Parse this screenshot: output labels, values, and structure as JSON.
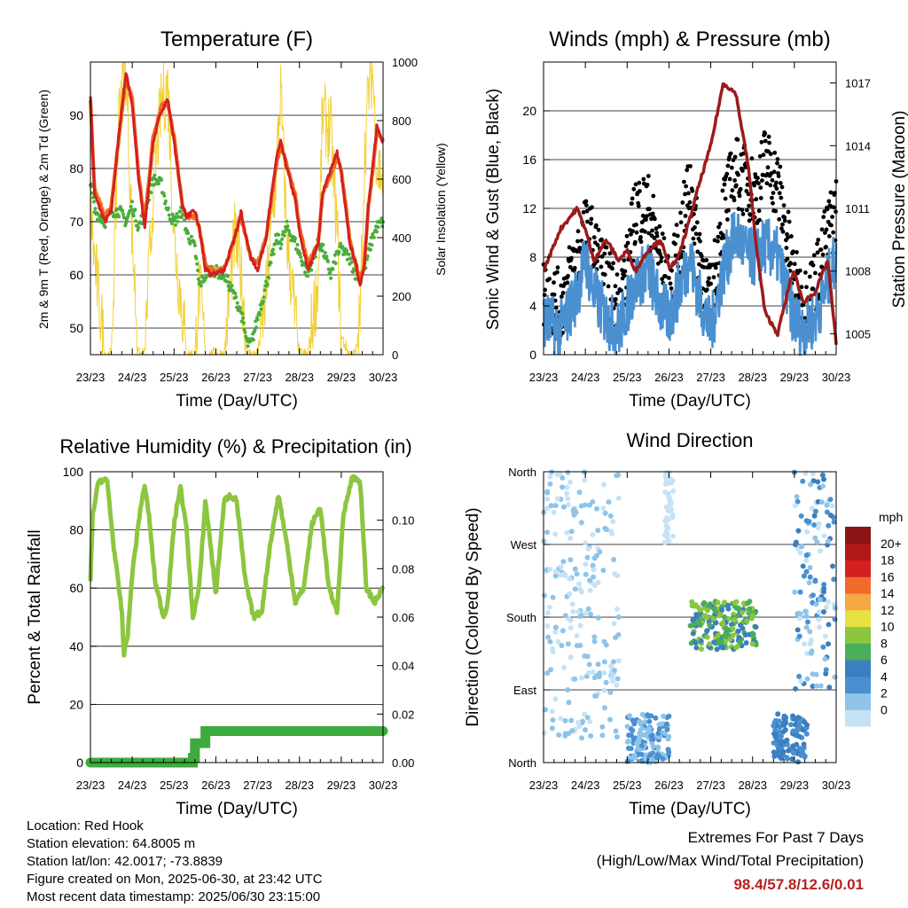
{
  "colors": {
    "temp2m": "#d42020",
    "temp9m": "#f07020",
    "dewpoint": "#4aad3c",
    "solar": "#f2d035",
    "wind": "#4a90d0",
    "gust": "#000000",
    "pressure": "#9b1b1b",
    "rh": "#8cc63f",
    "rain": "#3cab3c",
    "grid": "#000000",
    "extremes": "#b22222"
  },
  "x_axis": {
    "label": "Time (Day/UTC)",
    "ticks": [
      "23/23",
      "24/23",
      "25/23",
      "26/23",
      "27/23",
      "28/23",
      "29/23",
      "30/23"
    ]
  },
  "footer": {
    "location": "Location: Red Hook",
    "elevation": "Station elevation: 64.8005 m",
    "latlon": "Station lat/lon: 42.0017; -73.8839",
    "created": "Figure created on Mon, 2025-06-30, at 23:42 UTC",
    "latest": "Most recent data timestamp: 2025/06/30 23:15:00"
  },
  "extremes": {
    "title": "Extremes For Past 7 Days",
    "subtitle": "(High/Low/Max Wind/Total Precipitation)",
    "values": "98.4/57.8/12.6/0.01"
  },
  "chart_data": [
    {
      "type": "line",
      "title": "Temperature (F)",
      "xlabel": "Time (Day/UTC)",
      "ylabel": "2m & 9m T (Red, Orange) & 2m Td (Green)",
      "ylabel_right": "Solar Insolation (Yellow)",
      "x_ticks": [
        "23/23",
        "24/23",
        "25/23",
        "26/23",
        "27/23",
        "28/23",
        "29/23",
        "30/23"
      ],
      "ylim": [
        45,
        100
      ],
      "yticks": [
        50,
        60,
        70,
        80,
        90
      ],
      "ylim_right": [
        0,
        1000
      ],
      "yticks_right": [
        0,
        200,
        400,
        600,
        800,
        1000
      ],
      "grid": true,
      "x_days": [
        0,
        0.1,
        0.35,
        0.5,
        0.7,
        0.85,
        1.0,
        1.15,
        1.3,
        1.5,
        1.7,
        1.85,
        2.0,
        2.2,
        2.3,
        2.5,
        2.6,
        2.75,
        2.9,
        3.2,
        3.45,
        3.6,
        3.75,
        3.85,
        4.0,
        4.2,
        4.45,
        4.55,
        4.7,
        4.9,
        5.0,
        5.2,
        5.45,
        5.55,
        5.75,
        5.9,
        6.0,
        6.2,
        6.35,
        6.45,
        6.55,
        6.65,
        6.75,
        6.85,
        7.0
      ],
      "series": [
        {
          "name": "2m T",
          "role": "temp2m",
          "values": [
            94,
            75,
            70,
            72,
            88,
            98,
            92,
            78,
            69,
            85,
            91,
            93,
            85,
            73,
            71,
            72,
            69,
            61,
            60,
            61,
            67,
            72,
            66,
            63,
            61,
            67,
            82,
            85,
            80,
            74,
            68,
            61,
            66,
            75,
            80,
            83,
            79,
            66,
            62,
            58,
            62,
            73,
            80,
            88,
            85
          ]
        },
        {
          "name": "9m T",
          "role": "temp9m",
          "values": [
            93,
            76,
            71,
            73,
            87,
            97,
            93,
            79,
            70,
            86,
            92,
            92,
            86,
            73,
            71,
            71,
            69,
            62,
            61,
            61,
            67,
            71,
            66,
            63,
            62,
            67,
            81,
            84,
            81,
            75,
            69,
            62,
            66,
            75,
            79,
            82,
            80,
            67,
            62,
            59,
            62,
            73,
            79,
            87,
            85
          ]
        },
        {
          "name": "2m Td",
          "role": "dewpoint",
          "values": [
            78,
            72,
            70,
            72,
            72,
            70,
            73,
            69,
            72,
            78,
            77,
            72,
            70,
            72,
            68,
            65,
            58,
            60,
            61,
            60,
            56,
            53,
            47,
            47,
            52,
            58,
            67,
            66,
            69,
            66,
            64,
            60,
            66,
            65,
            60,
            64,
            65,
            63,
            60,
            60,
            61,
            64,
            67,
            69,
            70
          ]
        },
        {
          "name": "Solar Insolation",
          "role": "solar",
          "axis": "right",
          "values": [
            500,
            320,
            0,
            0,
            900,
            980,
            400,
            0,
            0,
            560,
            860,
            920,
            400,
            150,
            0,
            0,
            250,
            0,
            0,
            0,
            400,
            280,
            0,
            0,
            0,
            200,
            640,
            900,
            400,
            120,
            0,
            0,
            260,
            820,
            760,
            420,
            60,
            0,
            0,
            120,
            650,
            900,
            980,
            650,
            600
          ]
        }
      ]
    },
    {
      "type": "scatter",
      "title": "Winds (mph) & Pressure (mb)",
      "xlabel": "Time (Day/UTC)",
      "ylabel": "Sonic Wind & Gust (Blue, Black)",
      "ylabel_right": "Station Pressure (Maroon)",
      "x_ticks": [
        "23/23",
        "24/23",
        "25/23",
        "26/23",
        "27/23",
        "28/23",
        "29/23",
        "30/23"
      ],
      "ylim": [
        0,
        24
      ],
      "yticks": [
        0,
        4,
        8,
        12,
        16,
        20
      ],
      "ylim_right": [
        1004,
        1018
      ],
      "yticks_right": [
        1005,
        1008,
        1011,
        1014,
        1017
      ],
      "grid": true,
      "x_days": [
        0,
        0.4,
        0.8,
        1.0,
        1.2,
        1.5,
        1.8,
        2.0,
        2.2,
        2.5,
        2.8,
        3.0,
        3.2,
        3.5,
        3.7,
        4.0,
        4.3,
        4.6,
        4.9,
        5.1,
        5.3,
        5.6,
        5.9,
        6.0,
        6.2,
        6.5,
        6.8,
        7.0
      ],
      "series": [
        {
          "name": "Sonic Wind",
          "role": "wind",
          "values": [
            3,
            2,
            5,
            8,
            5,
            3,
            2,
            4,
            6,
            7,
            4,
            3,
            5,
            8,
            5,
            2,
            7,
            10,
            8,
            8,
            9,
            8,
            4,
            3,
            2,
            3,
            6,
            8
          ]
        },
        {
          "name": "Gust",
          "role": "gust",
          "values": [
            5,
            4,
            8,
            10,
            9,
            6,
            4,
            7,
            12,
            12,
            8,
            5,
            8,
            14,
            9,
            4,
            12,
            15,
            14,
            13,
            16,
            14,
            8,
            6,
            4,
            6,
            10,
            12
          ]
        },
        {
          "name": "Station Pressure",
          "role": "pressure",
          "axis": "right",
          "values": [
            1008,
            1010,
            1011,
            1010,
            1008.5,
            1009.5,
            1008.5,
            1009,
            1008,
            1009,
            1009.5,
            1008.2,
            1008.5,
            1010.5,
            1012,
            1014,
            1017,
            1016.5,
            1013,
            1009,
            1006,
            1005,
            1007.5,
            1008,
            1006.5,
            1007,
            1008.5,
            1004.5
          ]
        }
      ]
    },
    {
      "type": "line",
      "title": "Relative Humidity (%) & Precipitation (in)",
      "xlabel": "Time (Day/UTC)",
      "ylabel": "Percent & Total Rainfall",
      "x_ticks": [
        "23/23",
        "24/23",
        "25/23",
        "26/23",
        "27/23",
        "28/23",
        "29/23",
        "30/23"
      ],
      "ylim": [
        0,
        100
      ],
      "yticks": [
        0,
        20,
        40,
        60,
        80,
        100
      ],
      "ylim_right": [
        0,
        0.12
      ],
      "yticks_right": [
        0,
        0.02,
        0.04,
        0.06,
        0.08,
        0.1
      ],
      "grid": true,
      "x_days": [
        0,
        0.05,
        0.2,
        0.4,
        0.55,
        0.75,
        0.8,
        0.9,
        1.0,
        1.2,
        1.3,
        1.4,
        1.55,
        1.75,
        1.85,
        2.0,
        2.15,
        2.3,
        2.45,
        2.6,
        2.75,
        2.85,
        3.0,
        3.2,
        3.35,
        3.5,
        3.7,
        3.9,
        4.1,
        4.3,
        4.5,
        4.7,
        4.9,
        5.1,
        5.3,
        5.5,
        5.7,
        5.9,
        6.05,
        6.25,
        6.45,
        6.6,
        6.8,
        7.0
      ],
      "series": [
        {
          "name": "Relative Humidity",
          "role": "rh",
          "values": [
            62,
            85,
            97,
            97,
            75,
            52,
            37,
            45,
            65,
            88,
            95,
            85,
            62,
            50,
            55,
            82,
            95,
            80,
            50,
            60,
            90,
            78,
            58,
            90,
            92,
            90,
            63,
            50,
            52,
            75,
            92,
            75,
            55,
            60,
            82,
            88,
            60,
            52,
            85,
            98,
            97,
            60,
            55,
            60
          ]
        },
        {
          "name": "Total Precipitation",
          "role": "rain",
          "axis": "right",
          "steps": [
            [
              0,
              0
            ],
            [
              2.45,
              0.002
            ],
            [
              2.5,
              0.008
            ],
            [
              2.75,
              0.013
            ],
            [
              7.0,
              0.013
            ]
          ]
        }
      ]
    },
    {
      "type": "scatter",
      "title": "Wind Direction",
      "xlabel": "Time (Day/UTC)",
      "ylabel": "Direction (Colored By Speed)",
      "x_ticks": [
        "23/23",
        "24/23",
        "25/23",
        "26/23",
        "27/23",
        "28/23",
        "29/23",
        "30/23"
      ],
      "direction_labels": [
        "North",
        "East",
        "South",
        "West",
        "North"
      ],
      "ylim": [
        0,
        360
      ],
      "colorbar": {
        "unit": "mph",
        "levels": [
          "0",
          "2",
          "4",
          "6",
          "8",
          "10",
          "12",
          "14",
          "16",
          "18",
          "20+"
        ],
        "colors": [
          "#c6e2f5",
          "#8ec4ea",
          "#4a90d0",
          "#3a7fbf",
          "#4aad5c",
          "#8cc63f",
          "#e8e040",
          "#f5a742",
          "#f06a2a",
          "#d42020",
          "#b01818",
          "#8b1515"
        ]
      },
      "clusters": [
        {
          "x_days": [
            0,
            1.8
          ],
          "direction": [
            30,
            360
          ],
          "speed": "0-4"
        },
        {
          "x_days": [
            2.0,
            3.0
          ],
          "direction": [
            0,
            60
          ],
          "speed": "2-6"
        },
        {
          "x_days": [
            2.9,
            3.1
          ],
          "direction": [
            270,
            360
          ],
          "speed": "0-2"
        },
        {
          "x_days": [
            3.5,
            5.1
          ],
          "direction": [
            140,
            200
          ],
          "speed": "6-12"
        },
        {
          "x_days": [
            5.5,
            6.3
          ],
          "direction": [
            0,
            60
          ],
          "speed": "4-8"
        },
        {
          "x_days": [
            6.0,
            7.0
          ],
          "direction": [
            90,
            360
          ],
          "speed": "0-8"
        }
      ]
    }
  ]
}
